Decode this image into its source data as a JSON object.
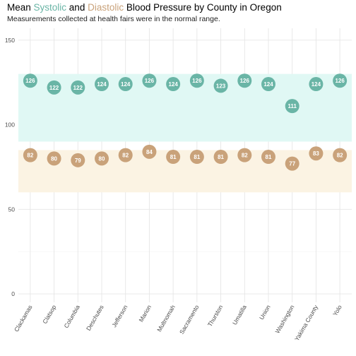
{
  "title_parts": {
    "prefix": "Mean ",
    "systolic": "Systolic",
    "connector": " and ",
    "diastolic": "Diastolic",
    "suffix": " Blood Pressure by County in Oregon"
  },
  "subtitle": "Measurements collected at health fairs were in the normal range.",
  "colors": {
    "systolic": "#6ab5a6",
    "diastolic": "#c9a27a",
    "systolic_band": "#e0f8f4",
    "diastolic_band": "#fbf3e3"
  },
  "chart_data": {
    "type": "scatter",
    "categories": [
      "Clackamas",
      "Clatsop",
      "Columbia",
      "Deschutes",
      "Jefferson",
      "Marion",
      "Multnomah",
      "Sacramento",
      "Thurston",
      "Umatilla",
      "Union",
      "Washington",
      "Yakima County",
      "Yolo"
    ],
    "series": [
      {
        "name": "Systolic",
        "values": [
          126,
          122,
          122,
          124,
          124,
          126,
          124,
          126,
          123,
          126,
          124,
          111,
          124,
          126
        ]
      },
      {
        "name": "Diastolic",
        "values": [
          82,
          80,
          79,
          80,
          82,
          84,
          81,
          81,
          81,
          82,
          81,
          77,
          83,
          82
        ]
      }
    ],
    "bands": [
      {
        "series": "Systolic",
        "range": [
          90,
          130
        ]
      },
      {
        "series": "Diastolic",
        "range": [
          60,
          85
        ]
      }
    ],
    "yticks": [
      0,
      50,
      100,
      150
    ],
    "ylim": [
      -5,
      157
    ],
    "xlabel": "",
    "ylabel": "",
    "grid": true
  }
}
